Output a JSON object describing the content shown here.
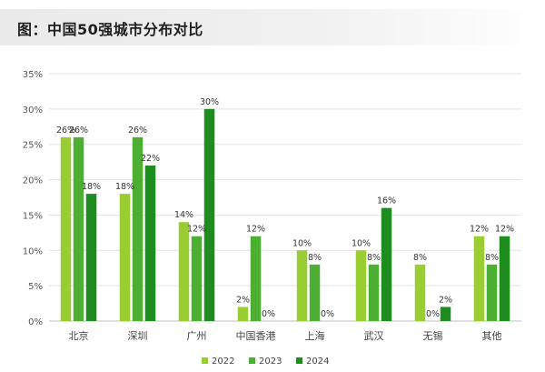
{
  "header": {
    "title": "图：中国50强城市分布对比"
  },
  "chart_data": {
    "type": "bar",
    "categories": [
      "北京",
      "深圳",
      "广州",
      "中国香港",
      "上海",
      "武汉",
      "无锡",
      "其他"
    ],
    "series": [
      {
        "name": "2022",
        "values": [
          26,
          18,
          14,
          2,
          10,
          10,
          8,
          12
        ],
        "color": "#9ACD32"
      },
      {
        "name": "2023",
        "values": [
          26,
          26,
          12,
          12,
          8,
          8,
          0,
          8
        ],
        "color": "#4CAF32"
      },
      {
        "name": "2024",
        "values": [
          18,
          22,
          30,
          0,
          0,
          16,
          2,
          12
        ],
        "color": "#1E8C1E"
      }
    ],
    "y_ticks": [
      "0%",
      "5%",
      "10%",
      "15%",
      "20%",
      "25%",
      "30%",
      "35%"
    ],
    "ylim": [
      0,
      35
    ],
    "value_suffix": "%",
    "grid": true,
    "legend_position": "bottom-center"
  }
}
